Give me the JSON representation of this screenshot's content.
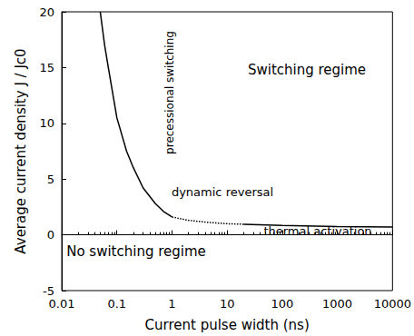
{
  "chart_data": {
    "type": "line",
    "x_label": "Current pulse width (ns)",
    "y_label": "Average current density J / Jc0",
    "log": "x",
    "xlim": [
      0.01,
      10000
    ],
    "xticks": [
      0.01,
      0.1,
      1,
      10,
      100,
      1000,
      10000
    ],
    "ylim": [
      -5,
      20
    ],
    "yticks": [
      -5,
      0,
      5,
      10,
      15,
      20
    ],
    "grid": false,
    "series": [
      {
        "color": "#000000",
        "line_style": "solid",
        "x": [
          0.05,
          0.06,
          0.07,
          0.1,
          0.15,
          0.2,
          0.3,
          0.5,
          0.7,
          1
        ],
        "values": [
          20,
          17,
          15,
          10.5,
          7.5,
          6,
          4.2,
          2.8,
          2.1,
          1.6
        ]
      },
      {
        "color": "#000000",
        "line_style": "dotted",
        "x": [
          1,
          2,
          5,
          10,
          20
        ],
        "values": [
          1.6,
          1.3,
          1.1,
          1.0,
          0.95
        ]
      },
      {
        "color": "#000000",
        "line_style": "solid",
        "x": [
          20,
          100,
          1000,
          10000
        ],
        "values": [
          0.95,
          0.85,
          0.75,
          0.7
        ]
      }
    ],
    "annotations": [
      "Switching regime",
      "No switching regime",
      "precessional switching",
      "dynamic reversal",
      "thermal activation"
    ]
  }
}
